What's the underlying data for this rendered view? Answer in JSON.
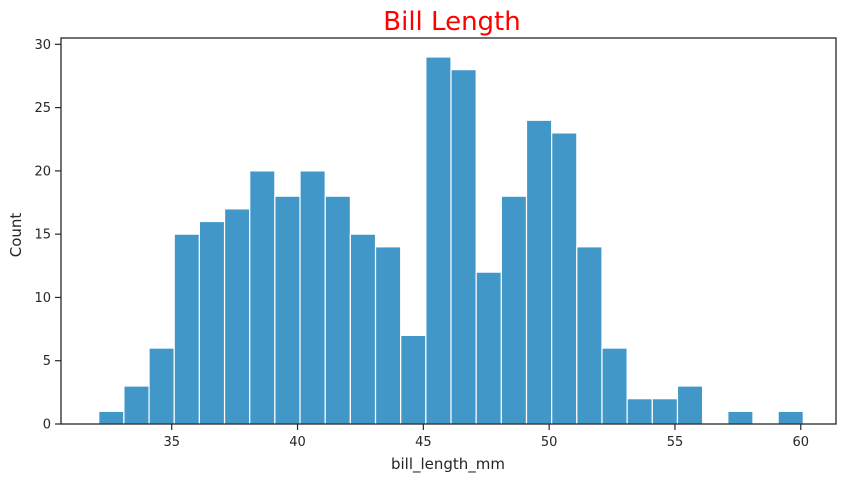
{
  "chart_data": {
    "type": "bar",
    "title": "Bill Length",
    "xlabel": "bill_length_mm",
    "ylabel": "Count",
    "xlim": [
      30.6,
      61.4
    ],
    "ylim": [
      0,
      30.5
    ],
    "x_ticks": [
      35,
      40,
      45,
      50,
      55,
      60
    ],
    "y_ticks": [
      0,
      5,
      10,
      15,
      20,
      25,
      30
    ],
    "bin_start": 32.1,
    "bin_width": 1.0,
    "values": [
      1,
      3,
      6,
      15,
      16,
      17,
      20,
      18,
      20,
      18,
      15,
      14,
      7,
      29,
      28,
      12,
      18,
      24,
      23,
      14,
      6,
      2,
      2,
      3,
      0,
      1,
      0,
      1
    ],
    "grid": false,
    "colors": {
      "bar_fill": "#4197c8",
      "bar_edge": "#ffffff",
      "title": "#ff0000",
      "axis": "#262626"
    }
  }
}
